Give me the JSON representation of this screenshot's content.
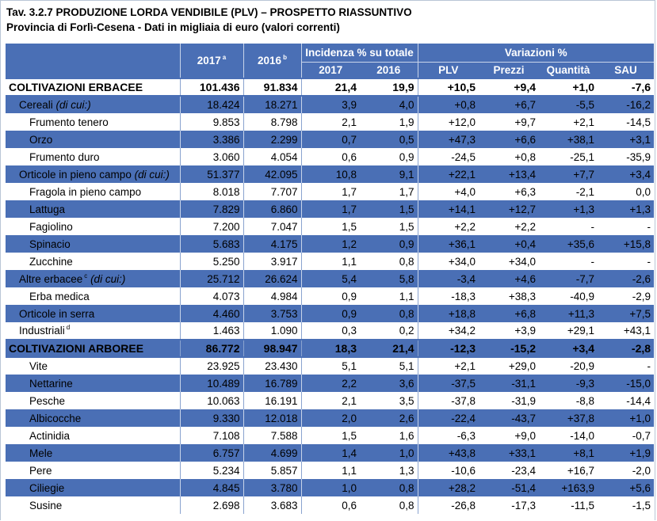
{
  "title": "Tav. 3.2.7 PRODUZIONE LORDA VENDIBILE (PLV) – PROSPETTO RIASSUNTIVO",
  "subtitle": "Provincia di Forlì-Cesena - Dati in migliaia di euro (valori correnti)",
  "header": {
    "col_2017": "2017",
    "col_2017_sup": "a",
    "col_2016": "2016",
    "col_2016_sup": "b",
    "group_incidenza": "Incidenza % su totale",
    "group_variazioni": "Variazioni %",
    "sub_2017": "2017",
    "sub_2016": "2016",
    "sub_plv": "PLV",
    "sub_prezzi": "Prezzi",
    "sub_quantita": "Quantità",
    "sub_sau": "SAU"
  },
  "rows": [
    {
      "label": "COLTIVAZIONI ERBACEE",
      "label_suffix": "",
      "sup": "",
      "level": 1,
      "style": "bold",
      "bg": "white",
      "v2017": "101.436",
      "v2016": "91.834",
      "inc2017": "21,4",
      "inc2016": "19,9",
      "plv": "+10,5",
      "prezzi": "+9,4",
      "quantita": "+1,0",
      "sau": "-7,6"
    },
    {
      "label": "Cereali",
      "label_suffix": "(di cui:)",
      "sup": "",
      "level": 2,
      "style": "normal",
      "bg": "blue",
      "v2017": "18.424",
      "v2016": "18.271",
      "inc2017": "3,9",
      "inc2016": "4,0",
      "plv": "+0,8",
      "prezzi": "+6,7",
      "quantita": "-5,5",
      "sau": "-16,2"
    },
    {
      "label": "Frumento tenero",
      "label_suffix": "",
      "sup": "",
      "level": 3,
      "style": "normal",
      "bg": "white",
      "v2017": "9.853",
      "v2016": "8.798",
      "inc2017": "2,1",
      "inc2016": "1,9",
      "plv": "+12,0",
      "prezzi": "+9,7",
      "quantita": "+2,1",
      "sau": "-14,5"
    },
    {
      "label": "Orzo",
      "label_suffix": "",
      "sup": "",
      "level": 3,
      "style": "normal",
      "bg": "blue",
      "v2017": "3.386",
      "v2016": "2.299",
      "inc2017": "0,7",
      "inc2016": "0,5",
      "plv": "+47,3",
      "prezzi": "+6,6",
      "quantita": "+38,1",
      "sau": "+3,1"
    },
    {
      "label": "Frumento duro",
      "label_suffix": "",
      "sup": "",
      "level": 3,
      "style": "normal",
      "bg": "white",
      "v2017": "3.060",
      "v2016": "4.054",
      "inc2017": "0,6",
      "inc2016": "0,9",
      "plv": "-24,5",
      "prezzi": "+0,8",
      "quantita": "-25,1",
      "sau": "-35,9"
    },
    {
      "label": "Orticole in pieno campo",
      "label_suffix": "(di cui:)",
      "sup": "",
      "level": 2,
      "style": "normal",
      "bg": "blue",
      "v2017": "51.377",
      "v2016": "42.095",
      "inc2017": "10,8",
      "inc2016": "9,1",
      "plv": "+22,1",
      "prezzi": "+13,4",
      "quantita": "+7,7",
      "sau": "+3,4"
    },
    {
      "label": "Fragola in pieno campo",
      "label_suffix": "",
      "sup": "",
      "level": 3,
      "style": "normal",
      "bg": "white",
      "v2017": "8.018",
      "v2016": "7.707",
      "inc2017": "1,7",
      "inc2016": "1,7",
      "plv": "+4,0",
      "prezzi": "+6,3",
      "quantita": "-2,1",
      "sau": "0,0"
    },
    {
      "label": "Lattuga",
      "label_suffix": "",
      "sup": "",
      "level": 3,
      "style": "normal",
      "bg": "blue",
      "v2017": "7.829",
      "v2016": "6.860",
      "inc2017": "1,7",
      "inc2016": "1,5",
      "plv": "+14,1",
      "prezzi": "+12,7",
      "quantita": "+1,3",
      "sau": "+1,3"
    },
    {
      "label": "Fagiolino",
      "label_suffix": "",
      "sup": "",
      "level": 3,
      "style": "normal",
      "bg": "white",
      "v2017": "7.200",
      "v2016": "7.047",
      "inc2017": "1,5",
      "inc2016": "1,5",
      "plv": "+2,2",
      "prezzi": "+2,2",
      "quantita": "-",
      "sau": "-"
    },
    {
      "label": "Spinacio",
      "label_suffix": "",
      "sup": "",
      "level": 3,
      "style": "normal",
      "bg": "blue",
      "v2017": "5.683",
      "v2016": "4.175",
      "inc2017": "1,2",
      "inc2016": "0,9",
      "plv": "+36,1",
      "prezzi": "+0,4",
      "quantita": "+35,6",
      "sau": "+15,8"
    },
    {
      "label": "Zucchine",
      "label_suffix": "",
      "sup": "",
      "level": 3,
      "style": "normal",
      "bg": "white",
      "v2017": "5.250",
      "v2016": "3.917",
      "inc2017": "1,1",
      "inc2016": "0,8",
      "plv": "+34,0",
      "prezzi": "+34,0",
      "quantita": "-",
      "sau": "-"
    },
    {
      "label": "Altre erbacee",
      "label_suffix": "(di cui:)",
      "sup": "c",
      "level": 2,
      "style": "normal",
      "bg": "blue",
      "v2017": "25.712",
      "v2016": "26.624",
      "inc2017": "5,4",
      "inc2016": "5,8",
      "plv": "-3,4",
      "prezzi": "+4,6",
      "quantita": "-7,7",
      "sau": "-2,6"
    },
    {
      "label": "Erba medica",
      "label_suffix": "",
      "sup": "",
      "level": 3,
      "style": "normal",
      "bg": "white",
      "v2017": "4.073",
      "v2016": "4.984",
      "inc2017": "0,9",
      "inc2016": "1,1",
      "plv": "-18,3",
      "prezzi": "+38,3",
      "quantita": "-40,9",
      "sau": "-2,9"
    },
    {
      "label": "Orticole in serra",
      "label_suffix": "",
      "sup": "",
      "level": 2,
      "style": "normal",
      "bg": "blue",
      "v2017": "4.460",
      "v2016": "3.753",
      "inc2017": "0,9",
      "inc2016": "0,8",
      "plv": "+18,8",
      "prezzi": "+6,8",
      "quantita": "+11,3",
      "sau": "+7,5"
    },
    {
      "label": "Industriali",
      "label_suffix": "",
      "sup": "d",
      "level": 2,
      "style": "normal",
      "bg": "white",
      "v2017": "1.463",
      "v2016": "1.090",
      "inc2017": "0,3",
      "inc2016": "0,2",
      "plv": "+34,2",
      "prezzi": "+3,9",
      "quantita": "+29,1",
      "sau": "+43,1"
    },
    {
      "label": "COLTIVAZIONI ARBOREE",
      "label_suffix": "",
      "sup": "",
      "level": 1,
      "style": "bold",
      "bg": "blue",
      "v2017": "86.772",
      "v2016": "98.947",
      "inc2017": "18,3",
      "inc2016": "21,4",
      "plv": "-12,3",
      "prezzi": "-15,2",
      "quantita": "+3,4",
      "sau": "-2,8"
    },
    {
      "label": "Vite",
      "label_suffix": "",
      "sup": "",
      "level": 3,
      "style": "normal",
      "bg": "white",
      "v2017": "23.925",
      "v2016": "23.430",
      "inc2017": "5,1",
      "inc2016": "5,1",
      "plv": "+2,1",
      "prezzi": "+29,0",
      "quantita": "-20,9",
      "sau": "-"
    },
    {
      "label": "Nettarine",
      "label_suffix": "",
      "sup": "",
      "level": 3,
      "style": "normal",
      "bg": "blue",
      "v2017": "10.489",
      "v2016": "16.789",
      "inc2017": "2,2",
      "inc2016": "3,6",
      "plv": "-37,5",
      "prezzi": "-31,1",
      "quantita": "-9,3",
      "sau": "-15,0"
    },
    {
      "label": "Pesche",
      "label_suffix": "",
      "sup": "",
      "level": 3,
      "style": "normal",
      "bg": "white",
      "v2017": "10.063",
      "v2016": "16.191",
      "inc2017": "2,1",
      "inc2016": "3,5",
      "plv": "-37,8",
      "prezzi": "-31,9",
      "quantita": "-8,8",
      "sau": "-14,4"
    },
    {
      "label": "Albicocche",
      "label_suffix": "",
      "sup": "",
      "level": 3,
      "style": "normal",
      "bg": "blue",
      "v2017": "9.330",
      "v2016": "12.018",
      "inc2017": "2,0",
      "inc2016": "2,6",
      "plv": "-22,4",
      "prezzi": "-43,7",
      "quantita": "+37,8",
      "sau": "+1,0"
    },
    {
      "label": "Actinidia",
      "label_suffix": "",
      "sup": "",
      "level": 3,
      "style": "normal",
      "bg": "white",
      "v2017": "7.108",
      "v2016": "7.588",
      "inc2017": "1,5",
      "inc2016": "1,6",
      "plv": "-6,3",
      "prezzi": "+9,0",
      "quantita": "-14,0",
      "sau": "-0,7"
    },
    {
      "label": "Mele",
      "label_suffix": "",
      "sup": "",
      "level": 3,
      "style": "normal",
      "bg": "blue",
      "v2017": "6.757",
      "v2016": "4.699",
      "inc2017": "1,4",
      "inc2016": "1,0",
      "plv": "+43,8",
      "prezzi": "+33,1",
      "quantita": "+8,1",
      "sau": "+1,9"
    },
    {
      "label": "Pere",
      "label_suffix": "",
      "sup": "",
      "level": 3,
      "style": "normal",
      "bg": "white",
      "v2017": "5.234",
      "v2016": "5.857",
      "inc2017": "1,1",
      "inc2016": "1,3",
      "plv": "-10,6",
      "prezzi": "-23,4",
      "quantita": "+16,7",
      "sau": "-2,0"
    },
    {
      "label": "Ciliegie",
      "label_suffix": "",
      "sup": "",
      "level": 3,
      "style": "normal",
      "bg": "blue",
      "v2017": "4.845",
      "v2016": "3.780",
      "inc2017": "1,0",
      "inc2016": "0,8",
      "plv": "+28,2",
      "prezzi": "-51,4",
      "quantita": "+163,9",
      "sau": "+5,6"
    },
    {
      "label": "Susine",
      "label_suffix": "",
      "sup": "",
      "level": 3,
      "style": "normal",
      "bg": "white",
      "v2017": "2.698",
      "v2016": "3.683",
      "inc2017": "0,6",
      "inc2016": "0,8",
      "plv": "-26,8",
      "prezzi": "-17,3",
      "quantita": "-11,5",
      "sau": "-1,5"
    }
  ]
}
